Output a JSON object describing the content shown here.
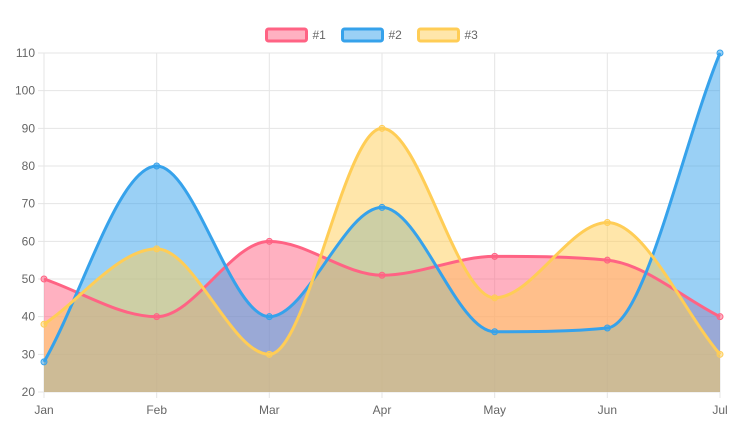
{
  "chart_data": {
    "type": "area",
    "title": "",
    "xlabel": "",
    "ylabel": "",
    "categories": [
      "Jan",
      "Feb",
      "Mar",
      "Apr",
      "May",
      "Jun",
      "Jul"
    ],
    "ylim": [
      20,
      110
    ],
    "yticks": [
      20,
      30,
      40,
      50,
      60,
      70,
      80,
      90,
      100,
      110
    ],
    "grid": true,
    "legend_position": "top",
    "series": [
      {
        "name": "#1",
        "values": [
          50,
          40,
          60,
          51,
          56,
          55,
          40
        ],
        "color": "#ff6384"
      },
      {
        "name": "#2",
        "values": [
          28,
          80,
          40,
          69,
          36,
          37,
          110
        ],
        "color": "#36a2eb"
      },
      {
        "name": "#3",
        "values": [
          38,
          58,
          30,
          90,
          45,
          65,
          30
        ],
        "color": "#ffcd56"
      }
    ]
  }
}
